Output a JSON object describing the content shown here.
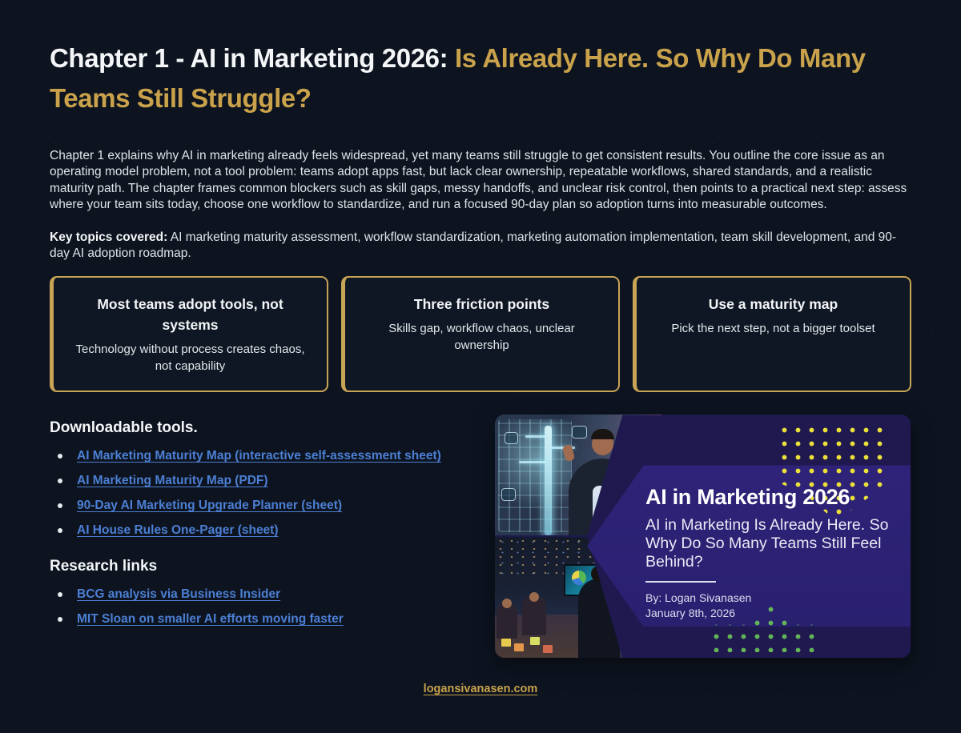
{
  "header": {
    "title_white": "Chapter 1 - AI in Marketing 2026:",
    "title_gold": " Is Already Here. So Why Do Many Teams Still Struggle?"
  },
  "intro": "Chapter 1 explains why AI in marketing already feels widespread, yet many teams still struggle to get consistent results. You outline the core issue as an operating model problem, not a tool problem: teams adopt apps fast, but lack clear ownership, repeatable workflows, shared standards, and a realistic maturity path. The chapter frames common blockers such as skill gaps, messy handoffs, and unclear risk control, then points to a practical next step: assess where your team sits today, choose one workflow to standardize, and run a focused 90-day plan so adoption turns into measurable outcomes.",
  "key_topics": {
    "label": "Key topics covered:",
    "text": " AI marketing maturity assessment, workflow standardization, marketing automation implementation, team skill development, and 90-day AI adoption roadmap."
  },
  "cards": [
    {
      "title": "Most teams adopt tools, not systems",
      "body": "Technology without process creates chaos, not capability"
    },
    {
      "title": "Three friction points",
      "body": "Skills gap, workflow chaos, unclear ownership"
    },
    {
      "title": "Use a maturity map",
      "body": "Pick the next step, not a bigger toolset"
    }
  ],
  "downloads": {
    "heading": "Downloadable tools.",
    "links": [
      {
        "label": "AI Marketing Maturity Map (interactive self-assessment sheet)"
      },
      {
        "label": "AI Marketing Maturity Map (PDF)"
      },
      {
        "label": "90-Day AI Marketing Upgrade Planner (sheet)"
      },
      {
        "label": "AI House Rules One-Pager (sheet)"
      }
    ]
  },
  "research": {
    "heading": "Research links",
    "links": [
      {
        "label": "BCG analysis via Business Insider"
      },
      {
        "label": "MIT Sloan on smaller AI efforts moving faster"
      }
    ]
  },
  "banner": {
    "title": "AI in Marketing 2026",
    "subtitle": "AI in Marketing Is Already Here. So Why Do So Many Teams Still Feel Behind?",
    "byline": "By: Logan Sivanasen",
    "date": "January 8th, 2026"
  },
  "footer": {
    "site_link": "logansivanasen.com"
  },
  "colors": {
    "background": "#0d1420",
    "accent_gold": "#c9a24b",
    "card_border_gold": "#c8a455",
    "link_blue": "#4c7fd3",
    "banner_indigo": "#1f1950",
    "banner_purple": "#2c2174",
    "dot_yellow": "#ece03a",
    "dot_green": "#64b557"
  }
}
